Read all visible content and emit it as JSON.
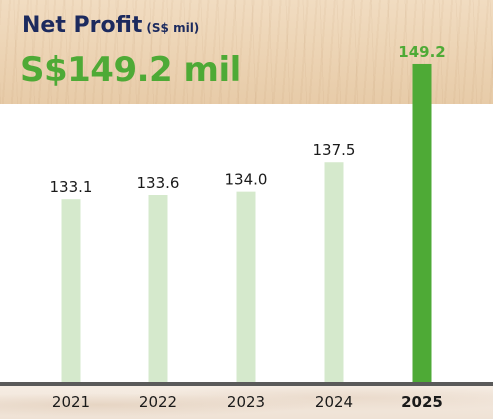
{
  "header": {
    "title": "Net Profit",
    "unit": "(S$ mil)",
    "headline": "S$149.2 mil"
  },
  "colors": {
    "title": "#1c2a5e",
    "accent": "#4eaa36",
    "bar": "#d5e9cc",
    "bar_highlight": "#4eaa36"
  },
  "chart_data": {
    "type": "bar",
    "title": "Net Profit",
    "ylabel": "",
    "xlabel": "",
    "categories": [
      "2021",
      "2022",
      "2023",
      "2024",
      "2025"
    ],
    "values": [
      133.1,
      133.6,
      134.0,
      137.5,
      149.2
    ],
    "labels": [
      "133.1",
      "133.6",
      "134.0",
      "137.5",
      "149.2"
    ],
    "highlight_index": 4,
    "grid": false,
    "legend": "none"
  }
}
